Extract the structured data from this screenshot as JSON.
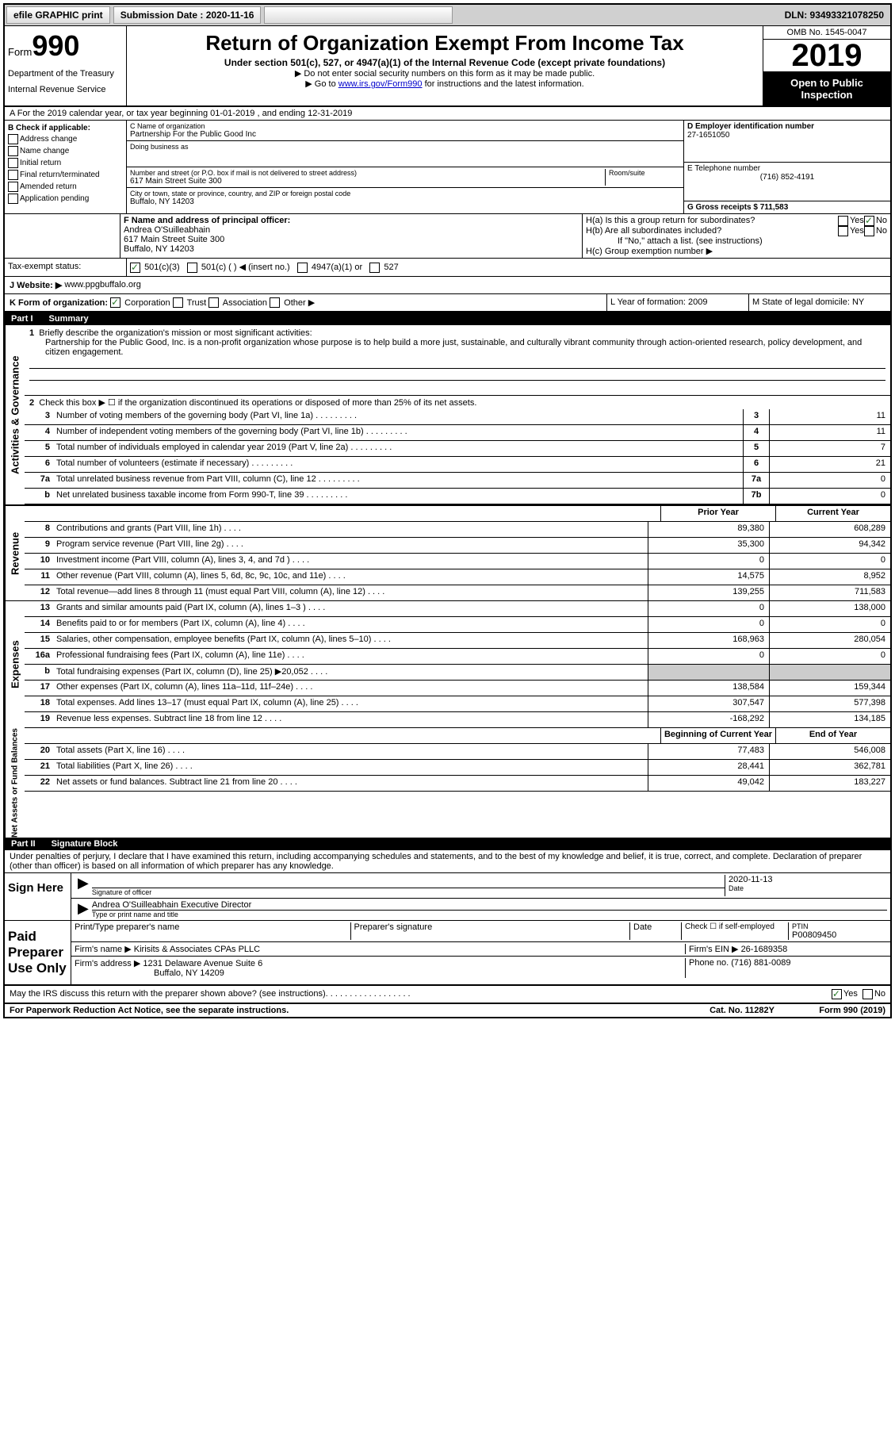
{
  "topbar": {
    "efile": "efile GRAPHIC print",
    "submission_label": "Submission Date : 2020-11-16",
    "dln": "DLN: 93493321078250"
  },
  "header": {
    "form_word": "Form",
    "form_num": "990",
    "dept1": "Department of the Treasury",
    "dept2": "Internal Revenue Service",
    "title": "Return of Organization Exempt From Income Tax",
    "sub1": "Under section 501(c), 527, or 4947(a)(1) of the Internal Revenue Code (except private foundations)",
    "sub2": "▶ Do not enter social security numbers on this form as it may be made public.",
    "sub3_pre": "▶ Go to ",
    "sub3_link": "www.irs.gov/Form990",
    "sub3_post": " for instructions and the latest information.",
    "omb": "OMB No. 1545-0047",
    "year": "2019",
    "open": "Open to Public Inspection"
  },
  "sectionA": "A For the 2019 calendar year, or tax year beginning 01-01-2019   , and ending 12-31-2019",
  "boxB": {
    "title": "B Check if applicable:",
    "items": [
      "Address change",
      "Name change",
      "Initial return",
      "Final return/terminated",
      "Amended return",
      "Application pending"
    ]
  },
  "boxC": {
    "label": "C Name of organization",
    "org": "Partnership For the Public Good Inc",
    "dba_label": "Doing business as",
    "addr_label": "Number and street (or P.O. box if mail is not delivered to street address)",
    "room_label": "Room/suite",
    "addr": "617 Main Street Suite 300",
    "city_label": "City or town, state or province, country, and ZIP or foreign postal code",
    "city": "Buffalo, NY  14203"
  },
  "boxD": {
    "label": "D Employer identification number",
    "val": "27-1651050"
  },
  "boxE": {
    "label": "E Telephone number",
    "val": "(716) 852-4191"
  },
  "boxG": {
    "label": "G Gross receipts $ 711,583"
  },
  "boxF": {
    "label": "F  Name and address of principal officer:",
    "name": "Andrea O'Suilleabhain",
    "addr1": "617 Main Street Suite 300",
    "addr2": "Buffalo, NY  14203"
  },
  "boxH": {
    "a": "H(a)  Is this a group return for subordinates?",
    "b": "H(b)  Are all subordinates included?",
    "b_note": "If \"No,\" attach a list. (see instructions)",
    "c": "H(c)  Group exemption number ▶"
  },
  "boxI": {
    "label": "Tax-exempt status:",
    "opts": [
      "501(c)(3)",
      "501(c) (   ) ◀ (insert no.)",
      "4947(a)(1) or",
      "527"
    ]
  },
  "boxJ": {
    "label": "J   Website: ▶",
    "val": "www.ppgbuffalo.org"
  },
  "boxK": {
    "label": "K Form of organization:",
    "opts": [
      "Corporation",
      "Trust",
      "Association",
      "Other ▶"
    ]
  },
  "boxL": {
    "label": "L Year of formation: 2009"
  },
  "boxM": {
    "label": "M State of legal domicile: NY"
  },
  "part1": {
    "num": "Part I",
    "title": "Summary"
  },
  "summary": {
    "line1_label": "Briefly describe the organization's mission or most significant activities:",
    "line1_text": "Partnership for the Public Good, Inc. is a non-profit organization whose purpose is to help build a more just, sustainable, and culturally vibrant community through action-oriented research, policy development, and citizen engagement.",
    "line2": "Check this box ▶ ☐  if the organization discontinued its operations or disposed of more than 25% of its net assets.",
    "rows_top": [
      {
        "n": "3",
        "t": "Number of voting members of the governing body (Part VI, line 1a)",
        "box": "3",
        "v": "11"
      },
      {
        "n": "4",
        "t": "Number of independent voting members of the governing body (Part VI, line 1b)",
        "box": "4",
        "v": "11"
      },
      {
        "n": "5",
        "t": "Total number of individuals employed in calendar year 2019 (Part V, line 2a)",
        "box": "5",
        "v": "7"
      },
      {
        "n": "6",
        "t": "Total number of volunteers (estimate if necessary)",
        "box": "6",
        "v": "21"
      },
      {
        "n": "7a",
        "t": "Total unrelated business revenue from Part VIII, column (C), line 12",
        "box": "7a",
        "v": "0"
      },
      {
        "n": "b",
        "t": "Net unrelated business taxable income from Form 990-T, line 39",
        "box": "7b",
        "v": "0"
      }
    ],
    "col_headers": {
      "prior": "Prior Year",
      "current": "Current Year"
    },
    "revenue": [
      {
        "n": "8",
        "t": "Contributions and grants (Part VIII, line 1h)",
        "p": "89,380",
        "c": "608,289"
      },
      {
        "n": "9",
        "t": "Program service revenue (Part VIII, line 2g)",
        "p": "35,300",
        "c": "94,342"
      },
      {
        "n": "10",
        "t": "Investment income (Part VIII, column (A), lines 3, 4, and 7d )",
        "p": "0",
        "c": "0"
      },
      {
        "n": "11",
        "t": "Other revenue (Part VIII, column (A), lines 5, 6d, 8c, 9c, 10c, and 11e)",
        "p": "14,575",
        "c": "8,952"
      },
      {
        "n": "12",
        "t": "Total revenue—add lines 8 through 11 (must equal Part VIII, column (A), line 12)",
        "p": "139,255",
        "c": "711,583"
      }
    ],
    "expenses": [
      {
        "n": "13",
        "t": "Grants and similar amounts paid (Part IX, column (A), lines 1–3 )",
        "p": "0",
        "c": "138,000"
      },
      {
        "n": "14",
        "t": "Benefits paid to or for members (Part IX, column (A), line 4)",
        "p": "0",
        "c": "0"
      },
      {
        "n": "15",
        "t": "Salaries, other compensation, employee benefits (Part IX, column (A), lines 5–10)",
        "p": "168,963",
        "c": "280,054"
      },
      {
        "n": "16a",
        "t": "Professional fundraising fees (Part IX, column (A), line 11e)",
        "p": "0",
        "c": "0"
      },
      {
        "n": "b",
        "t": "Total fundraising expenses (Part IX, column (D), line 25) ▶20,052",
        "p": "",
        "c": "",
        "grey": true
      },
      {
        "n": "17",
        "t": "Other expenses (Part IX, column (A), lines 11a–11d, 11f–24e)",
        "p": "138,584",
        "c": "159,344"
      },
      {
        "n": "18",
        "t": "Total expenses. Add lines 13–17 (must equal Part IX, column (A), line 25)",
        "p": "307,547",
        "c": "577,398"
      },
      {
        "n": "19",
        "t": "Revenue less expenses. Subtract line 18 from line 12",
        "p": "-168,292",
        "c": "134,185"
      }
    ],
    "net_headers": {
      "begin": "Beginning of Current Year",
      "end": "End of Year"
    },
    "net": [
      {
        "n": "20",
        "t": "Total assets (Part X, line 16)",
        "p": "77,483",
        "c": "546,008"
      },
      {
        "n": "21",
        "t": "Total liabilities (Part X, line 26)",
        "p": "28,441",
        "c": "362,781"
      },
      {
        "n": "22",
        "t": "Net assets or fund balances. Subtract line 21 from line 20",
        "p": "49,042",
        "c": "183,227"
      }
    ],
    "vert_labels": {
      "gov": "Activities & Governance",
      "rev": "Revenue",
      "exp": "Expenses",
      "net": "Net Assets or Fund Balances"
    }
  },
  "part2": {
    "num": "Part II",
    "title": "Signature Block"
  },
  "sig": {
    "penalties": "Under penalties of perjury, I declare that I have examined this return, including accompanying schedules and statements, and to the best of my knowledge and belief, it is true, correct, and complete. Declaration of preparer (other than officer) is based on all information of which preparer has any knowledge.",
    "sign_here": "Sign Here",
    "sig_officer": "Signature of officer",
    "date": "Date",
    "date_val": "2020-11-13",
    "name_title": "Andrea O'Suilleabhain  Executive Director",
    "type_label": "Type or print name and title",
    "paid": "Paid Preparer Use Only",
    "prep_name_label": "Print/Type preparer's name",
    "prep_sig_label": "Preparer's signature",
    "prep_date_label": "Date",
    "check_self": "Check ☐ if self-employed",
    "ptin_label": "PTIN",
    "ptin": "P00809450",
    "firm_name_label": "Firm's name    ▶",
    "firm_name": "Kirisits & Associates CPAs PLLC",
    "firm_ein_label": "Firm's EIN ▶",
    "firm_ein": "26-1689358",
    "firm_addr_label": "Firm's address ▶",
    "firm_addr1": "1231 Delaware Avenue Suite 6",
    "firm_addr2": "Buffalo, NY  14209",
    "phone_label": "Phone no.",
    "phone": "(716) 881-0089",
    "discuss": "May the IRS discuss this return with the preparer shown above? (see instructions)"
  },
  "footer": {
    "left": "For Paperwork Reduction Act Notice, see the separate instructions.",
    "mid": "Cat. No. 11282Y",
    "right": "Form 990 (2019)"
  }
}
